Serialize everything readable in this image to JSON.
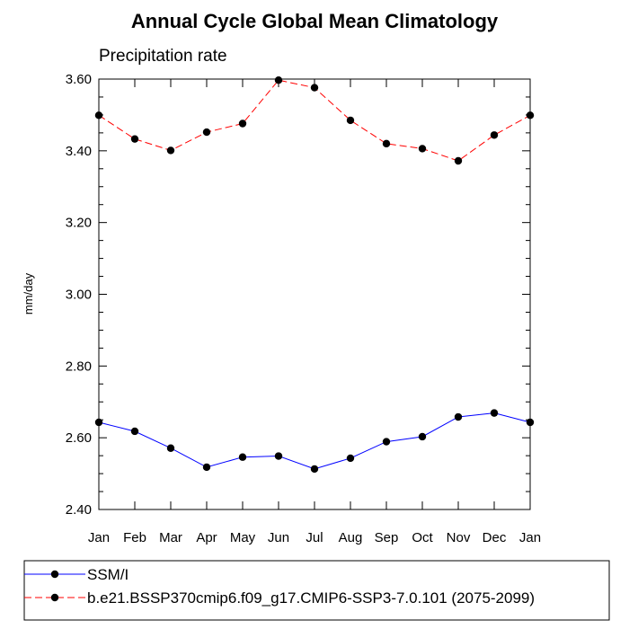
{
  "chart_data": {
    "type": "line",
    "title": "Annual Cycle Global Mean Climatology",
    "subtitle": "Precipitation rate",
    "ylabel": "mm/day",
    "xlabel": "",
    "ylim": [
      2.4,
      3.6
    ],
    "y_ticks": [
      "2.40",
      "2.60",
      "2.80",
      "3.00",
      "3.20",
      "3.40",
      "3.60"
    ],
    "y_tick_values": [
      2.4,
      2.6,
      2.8,
      3.0,
      3.2,
      3.4,
      3.6
    ],
    "categories": [
      "Jan",
      "Feb",
      "Mar",
      "Apr",
      "May",
      "Jun",
      "Jul",
      "Aug",
      "Sep",
      "Oct",
      "Nov",
      "Dec",
      "Jan"
    ],
    "grid": false,
    "legend_position": "bottom",
    "series": [
      {
        "name": "SSM/I",
        "color": "#0000ff",
        "dash": "solid",
        "marker": "filled-circle",
        "values": [
          2.643,
          2.618,
          2.571,
          2.518,
          2.546,
          2.549,
          2.513,
          2.543,
          2.589,
          2.603,
          2.658,
          2.669,
          2.643
        ]
      },
      {
        "name": "b.e21.BSSP370cmip6.f09_g17.CMIP6-SSP3-7.0.101 (2075-2099)",
        "color": "#ff0000",
        "dash": "dashed",
        "marker": "filled-circle",
        "values": [
          3.499,
          3.433,
          3.401,
          3.452,
          3.476,
          3.597,
          3.576,
          3.485,
          3.42,
          3.406,
          3.372,
          3.444,
          3.499
        ]
      }
    ]
  }
}
